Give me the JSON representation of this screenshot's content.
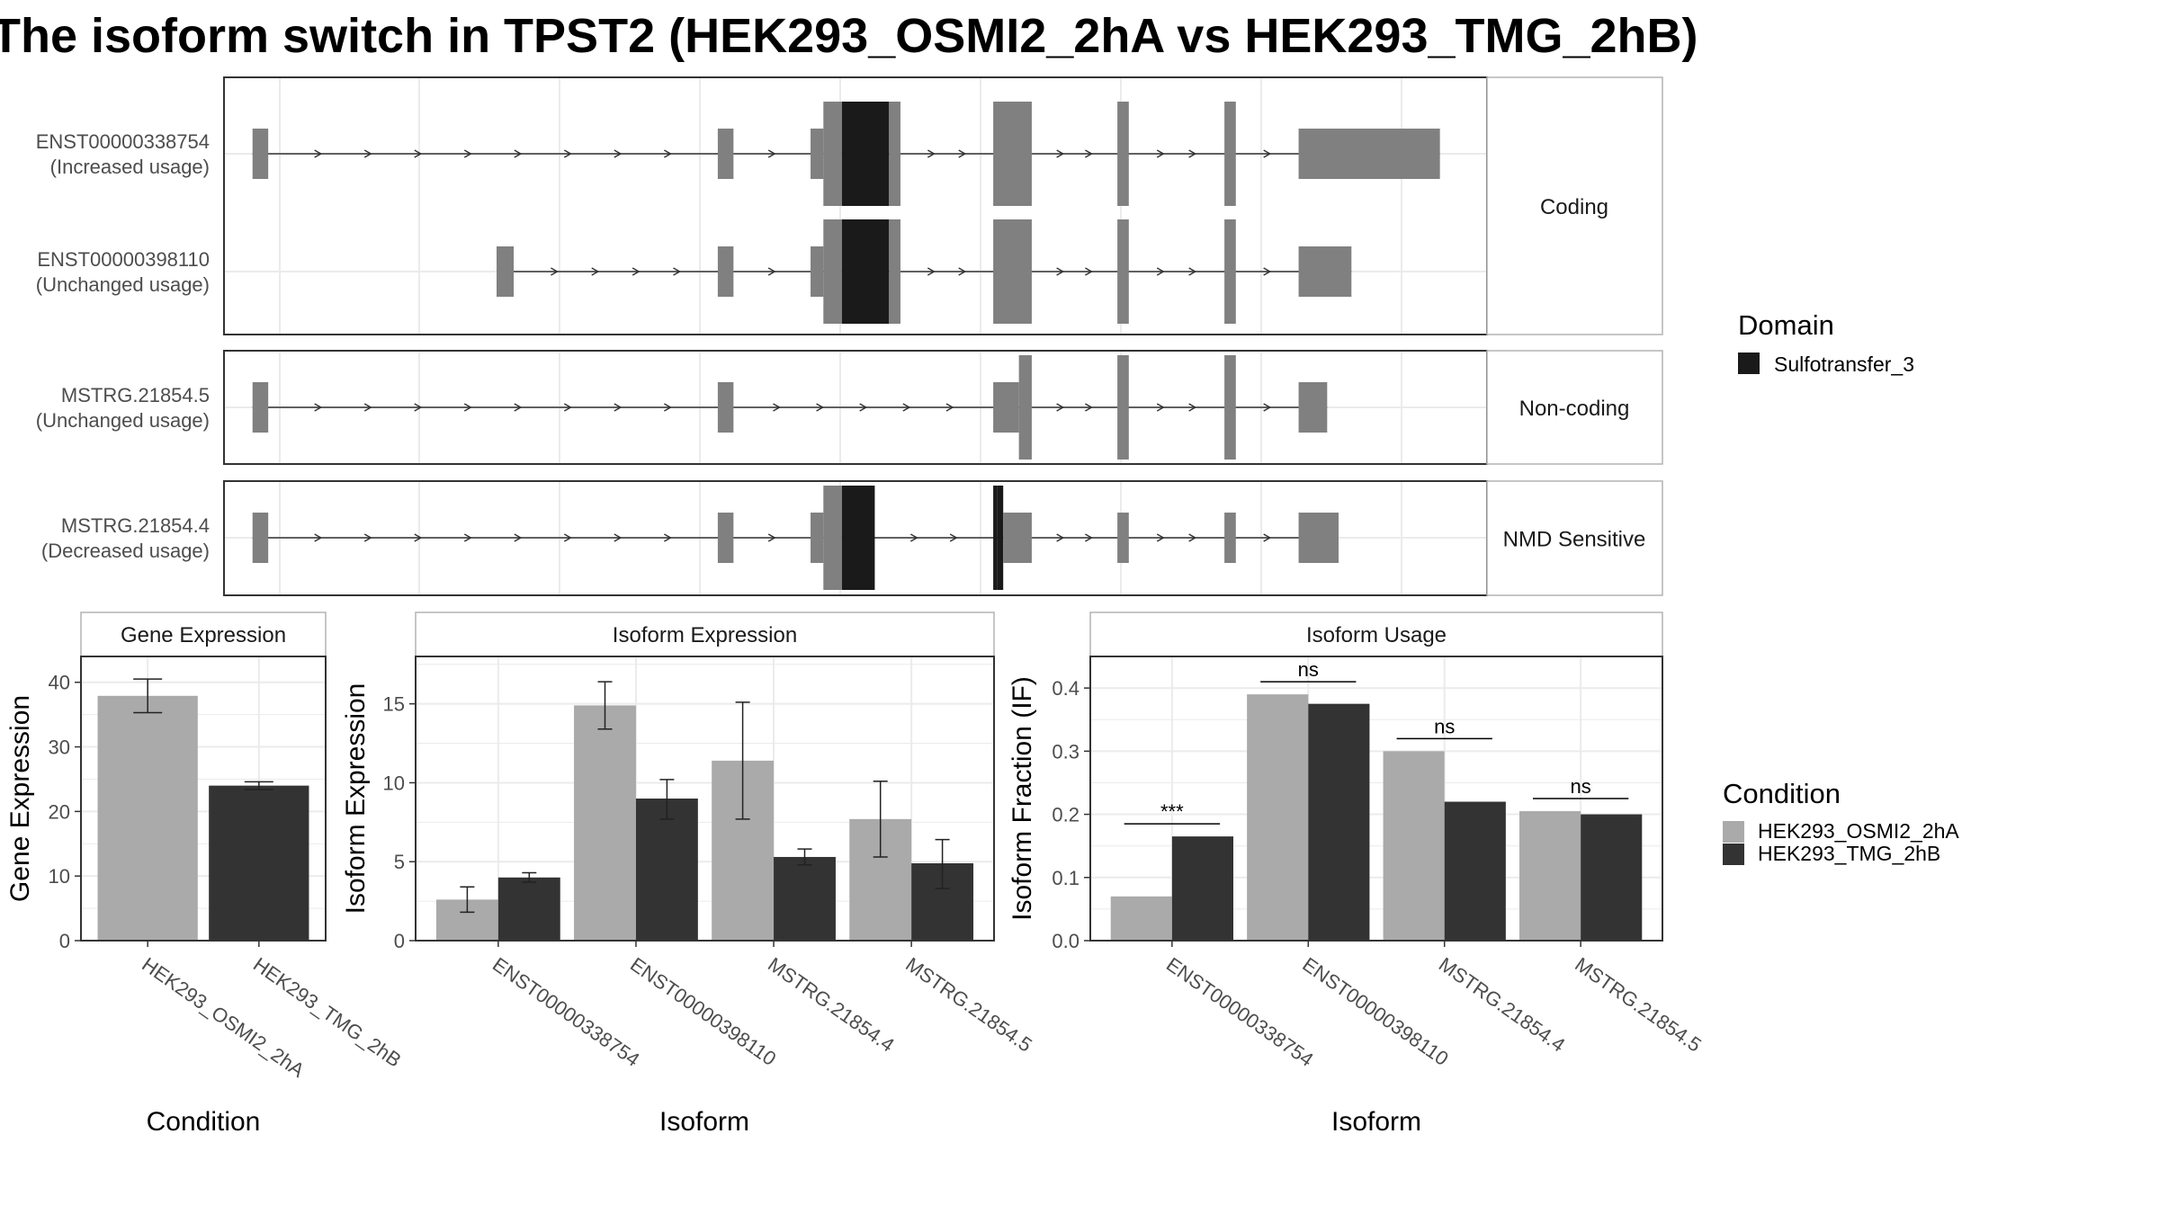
{
  "title": "The isoform switch in TPST2 (HEK293_OSMI2_2hA vs HEK293_TMG_2hB)",
  "colors": {
    "exon": "#808080",
    "domain": "#1a1a1a",
    "cond1": "#aaaaaa",
    "cond2": "#333333",
    "grid": "#ebebeb",
    "panel_border": "#333333",
    "strip_border": "#b3b3b3"
  },
  "structure_panel": {
    "groups": [
      {
        "label": "Coding",
        "transcripts": [
          0,
          1
        ]
      },
      {
        "label": "Non-coding",
        "transcripts": [
          2
        ]
      },
      {
        "label": "NMD Sensitive",
        "transcripts": [
          3
        ]
      }
    ],
    "transcripts": [
      {
        "id": "ENST00000338754",
        "usage": "(Increased usage)",
        "exons": [
          [
            200,
            211,
            "utr"
          ],
          [
            526,
            537,
            "utr"
          ],
          [
            591,
            600,
            "utr"
          ],
          [
            600,
            613,
            "cds"
          ],
          [
            613,
            646,
            "domain"
          ],
          [
            646,
            654,
            "cds"
          ],
          [
            719,
            746,
            "cds"
          ],
          [
            806,
            814,
            "cds"
          ],
          [
            881,
            889,
            "cds"
          ],
          [
            933,
            1032,
            "utr"
          ]
        ]
      },
      {
        "id": "ENST00000398110",
        "usage": "(Unchanged usage)",
        "exons": [
          [
            371,
            383,
            "utr"
          ],
          [
            526,
            537,
            "utr"
          ],
          [
            591,
            600,
            "utr"
          ],
          [
            600,
            613,
            "cds"
          ],
          [
            613,
            646,
            "domain"
          ],
          [
            646,
            654,
            "cds"
          ],
          [
            719,
            746,
            "cds"
          ],
          [
            806,
            814,
            "cds"
          ],
          [
            881,
            889,
            "cds"
          ],
          [
            933,
            970,
            "utr"
          ]
        ]
      },
      {
        "id": "MSTRG.21854.5",
        "usage": "(Unchanged usage)",
        "exons": [
          [
            200,
            211,
            "utr"
          ],
          [
            526,
            537,
            "utr"
          ],
          [
            719,
            737,
            "utr"
          ],
          [
            737,
            746,
            "cds"
          ],
          [
            806,
            814,
            "cds"
          ],
          [
            881,
            889,
            "cds"
          ],
          [
            933,
            953,
            "utr"
          ]
        ]
      },
      {
        "id": "MSTRG.21854.4",
        "usage": "(Decreased usage)",
        "exons": [
          [
            200,
            211,
            "utr"
          ],
          [
            526,
            537,
            "utr"
          ],
          [
            591,
            600,
            "utr"
          ],
          [
            600,
            613,
            "cds"
          ],
          [
            613,
            636,
            "domain"
          ],
          [
            719,
            722,
            "domain"
          ],
          [
            722,
            726,
            "domain"
          ],
          [
            726,
            746,
            "utr"
          ],
          [
            806,
            814,
            "utr"
          ],
          [
            881,
            889,
            "utr"
          ],
          [
            933,
            961,
            "utr"
          ]
        ]
      }
    ]
  },
  "domain_legend": {
    "title": "Domain",
    "items": [
      {
        "label": "Sulfotransfer_3",
        "color": "#1a1a1a"
      }
    ]
  },
  "condition_legend": {
    "title": "Condition",
    "items": [
      {
        "label": "HEK293_OSMI2_2hA",
        "color": "#aaaaaa"
      },
      {
        "label": "HEK293_TMG_2hB",
        "color": "#333333"
      }
    ]
  },
  "chart_data": [
    {
      "type": "bar",
      "title": "Gene Expression",
      "xlabel": "Condition",
      "ylabel": "Gene Expression",
      "ylim": [
        0,
        44
      ],
      "yticks": [
        0,
        10,
        20,
        30,
        40
      ],
      "categories": [
        "HEK293_OSMI2_2hA",
        "HEK293_TMG_2hB"
      ],
      "values": [
        37.9,
        24.0
      ],
      "errors": [
        [
          35.3,
          40.5
        ],
        [
          23.4,
          24.6
        ]
      ]
    },
    {
      "type": "bar",
      "title": "Isoform Expression",
      "xlabel": "Isoform",
      "ylabel": "Isoform Expression",
      "ylim": [
        0,
        18
      ],
      "yticks": [
        0,
        5,
        10,
        15
      ],
      "categories": [
        "ENST00000338754",
        "ENST00000398110",
        "MSTRG.21854.4",
        "MSTRG.21854.5"
      ],
      "series": [
        {
          "name": "HEK293_OSMI2_2hA",
          "values": [
            2.6,
            14.9,
            11.4,
            7.7
          ],
          "errors": [
            [
              1.8,
              3.4
            ],
            [
              13.4,
              16.4
            ],
            [
              7.7,
              15.1
            ],
            [
              5.3,
              10.1
            ]
          ]
        },
        {
          "name": "HEK293_TMG_2hB",
          "values": [
            4.0,
            9.0,
            5.3,
            4.9
          ],
          "errors": [
            [
              3.7,
              4.3
            ],
            [
              7.7,
              10.2
            ],
            [
              4.8,
              5.8
            ],
            [
              3.3,
              6.4
            ]
          ]
        }
      ]
    },
    {
      "type": "bar",
      "title": "Isoform Usage",
      "xlabel": "Isoform",
      "ylabel": "Isoform Fraction (IF)",
      "ylim": [
        0,
        0.45
      ],
      "yticks": [
        0.0,
        0.1,
        0.2,
        0.3,
        0.4
      ],
      "categories": [
        "ENST00000338754",
        "ENST00000398110",
        "MSTRG.21854.4",
        "MSTRG.21854.5"
      ],
      "series": [
        {
          "name": "HEK293_OSMI2_2hA",
          "values": [
            0.07,
            0.39,
            0.3,
            0.205
          ]
        },
        {
          "name": "HEK293_TMG_2hB",
          "values": [
            0.165,
            0.375,
            0.22,
            0.2
          ]
        }
      ],
      "significance": [
        "***",
        "ns",
        "ns",
        "ns"
      ]
    }
  ]
}
